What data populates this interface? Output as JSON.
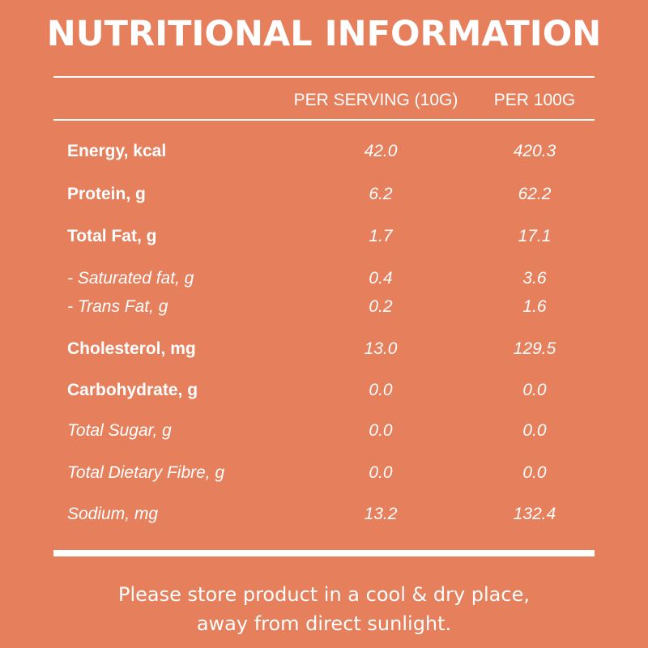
{
  "title": "NUTRITIONAL INFORMATION",
  "columns": {
    "per_serving": "PER SERVING (10G)",
    "per_100g": "PER 100G"
  },
  "rows": [
    {
      "label": "Energy, kcal",
      "per_serving": "42.0",
      "per_100g": "420.3"
    },
    {
      "label": "Protein, g",
      "per_serving": "6.2",
      "per_100g": "62.2"
    },
    {
      "label": "Total Fat, g",
      "per_serving": "1.7",
      "per_100g": "17.1"
    },
    {
      "label": "- Saturated fat, g",
      "per_serving": "0.4",
      "per_100g": "3.6"
    },
    {
      "label": "- Trans Fat, g",
      "per_serving": "0.2",
      "per_100g": "1.6"
    },
    {
      "label": "Cholesterol, mg",
      "per_serving": "13.0",
      "per_100g": "129.5"
    },
    {
      "label": "Carbohydrate, g",
      "per_serving": "0.0",
      "per_100g": "0.0"
    },
    {
      "label": "Total Sugar, g",
      "per_serving": "0.0",
      "per_100g": "0.0"
    },
    {
      "label": "Total Dietary Fibre, g",
      "per_serving": "0.0",
      "per_100g": "0.0"
    },
    {
      "label": "Sodium, mg",
      "per_serving": "13.2",
      "per_100g": "132.4"
    }
  ],
  "footer": {
    "line1": "Please store product in a cool & dry place,",
    "line2": "away from direct sunlight."
  },
  "colors": {
    "background": "#e67f5c",
    "text": "#ffffff"
  }
}
